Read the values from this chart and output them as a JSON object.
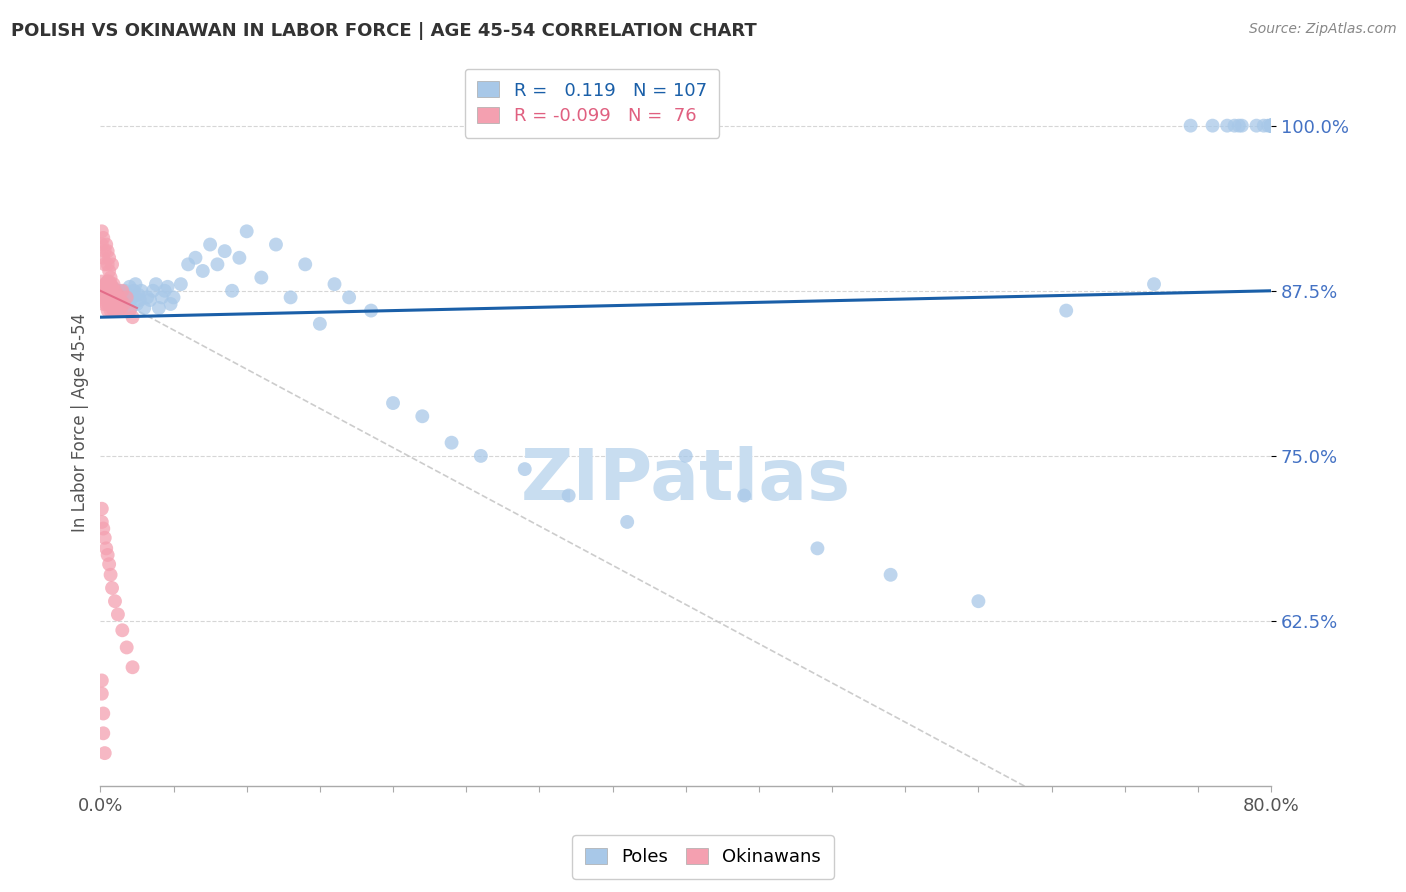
{
  "title": "POLISH VS OKINAWAN IN LABOR FORCE | AGE 45-54 CORRELATION CHART",
  "source": "Source: ZipAtlas.com",
  "ylabel": "In Labor Force | Age 45-54",
  "xlim": [
    0.0,
    0.8
  ],
  "ylim": [
    0.5,
    1.05
  ],
  "poles_R": 0.119,
  "poles_N": 107,
  "okinawans_R": -0.099,
  "okinawans_N": 76,
  "poles_color": "#a8c8e8",
  "poles_line_color": "#1a5fa8",
  "okinawans_color": "#f4a0b0",
  "okinawans_line_color": "#e06080",
  "background_color": "#ffffff",
  "grid_color": "#cccccc",
  "watermark_color": "#c8ddf0",
  "legend_poles_label": "Poles",
  "legend_okinawans_label": "Okinawans",
  "title_color": "#333333",
  "ytick_color": "#4472c4",
  "poles_x": [
    0.002,
    0.003,
    0.004,
    0.004,
    0.005,
    0.005,
    0.005,
    0.006,
    0.006,
    0.006,
    0.007,
    0.007,
    0.007,
    0.008,
    0.008,
    0.008,
    0.009,
    0.009,
    0.01,
    0.01,
    0.01,
    0.011,
    0.011,
    0.012,
    0.012,
    0.013,
    0.013,
    0.014,
    0.014,
    0.015,
    0.015,
    0.016,
    0.016,
    0.017,
    0.018,
    0.019,
    0.02,
    0.021,
    0.022,
    0.023,
    0.024,
    0.025,
    0.026,
    0.027,
    0.028,
    0.03,
    0.032,
    0.034,
    0.036,
    0.038,
    0.04,
    0.042,
    0.044,
    0.046,
    0.048,
    0.05,
    0.055,
    0.06,
    0.065,
    0.07,
    0.075,
    0.08,
    0.085,
    0.09,
    0.095,
    0.1,
    0.11,
    0.12,
    0.13,
    0.14,
    0.15,
    0.16,
    0.17,
    0.185,
    0.2,
    0.22,
    0.24,
    0.26,
    0.29,
    0.32,
    0.36,
    0.4,
    0.44,
    0.49,
    0.54,
    0.6,
    0.66,
    0.72,
    0.745,
    0.76,
    0.77,
    0.775,
    0.778,
    0.78,
    0.79,
    0.795,
    0.798,
    0.8,
    0.8,
    0.8,
    0.8,
    0.8,
    0.8,
    0.8,
    0.8,
    0.8,
    0.8
  ],
  "poles_y": [
    0.875,
    0.878,
    0.872,
    0.88,
    0.868,
    0.875,
    0.882,
    0.87,
    0.876,
    0.865,
    0.873,
    0.868,
    0.877,
    0.862,
    0.87,
    0.878,
    0.866,
    0.874,
    0.86,
    0.868,
    0.876,
    0.865,
    0.872,
    0.86,
    0.87,
    0.867,
    0.875,
    0.862,
    0.87,
    0.865,
    0.873,
    0.86,
    0.868,
    0.875,
    0.87,
    0.865,
    0.878,
    0.862,
    0.87,
    0.875,
    0.88,
    0.865,
    0.872,
    0.868,
    0.875,
    0.862,
    0.87,
    0.868,
    0.875,
    0.88,
    0.862,
    0.87,
    0.875,
    0.878,
    0.865,
    0.87,
    0.88,
    0.895,
    0.9,
    0.89,
    0.91,
    0.895,
    0.905,
    0.875,
    0.9,
    0.92,
    0.885,
    0.91,
    0.87,
    0.895,
    0.85,
    0.88,
    0.87,
    0.86,
    0.79,
    0.78,
    0.76,
    0.75,
    0.74,
    0.72,
    0.7,
    0.75,
    0.72,
    0.68,
    0.66,
    0.64,
    0.86,
    0.88,
    1.0,
    1.0,
    1.0,
    1.0,
    1.0,
    1.0,
    1.0,
    1.0,
    1.0,
    1.0,
    1.0,
    1.0,
    1.0,
    1.0,
    1.0,
    1.0,
    1.0,
    1.0,
    1.0
  ],
  "okinawans_x": [
    0.001,
    0.001,
    0.002,
    0.002,
    0.002,
    0.003,
    0.003,
    0.003,
    0.003,
    0.004,
    0.004,
    0.004,
    0.005,
    0.005,
    0.005,
    0.005,
    0.006,
    0.006,
    0.006,
    0.006,
    0.007,
    0.007,
    0.007,
    0.007,
    0.008,
    0.008,
    0.008,
    0.009,
    0.009,
    0.01,
    0.01,
    0.011,
    0.012,
    0.013,
    0.014,
    0.015,
    0.016,
    0.018,
    0.02,
    0.022,
    0.001,
    0.001,
    0.002,
    0.002,
    0.003,
    0.003,
    0.004,
    0.005,
    0.005,
    0.006,
    0.006,
    0.007,
    0.008,
    0.009,
    0.01,
    0.012,
    0.014,
    0.001,
    0.001,
    0.002,
    0.003,
    0.004,
    0.005,
    0.006,
    0.007,
    0.008,
    0.01,
    0.012,
    0.015,
    0.018,
    0.022,
    0.001,
    0.001,
    0.002,
    0.002,
    0.003
  ],
  "okinawans_y": [
    0.875,
    0.882,
    0.87,
    0.878,
    0.865,
    0.872,
    0.868,
    0.875,
    0.88,
    0.865,
    0.872,
    0.878,
    0.86,
    0.868,
    0.875,
    0.882,
    0.865,
    0.87,
    0.878,
    0.882,
    0.86,
    0.868,
    0.875,
    0.88,
    0.865,
    0.872,
    0.878,
    0.86,
    0.868,
    0.862,
    0.87,
    0.865,
    0.872,
    0.86,
    0.868,
    0.875,
    0.865,
    0.87,
    0.86,
    0.855,
    0.91,
    0.92,
    0.9,
    0.915,
    0.895,
    0.905,
    0.91,
    0.895,
    0.905,
    0.89,
    0.9,
    0.885,
    0.895,
    0.88,
    0.875,
    0.87,
    0.86,
    0.7,
    0.71,
    0.695,
    0.688,
    0.68,
    0.675,
    0.668,
    0.66,
    0.65,
    0.64,
    0.63,
    0.618,
    0.605,
    0.59,
    0.58,
    0.57,
    0.555,
    0.54,
    0.525
  ]
}
